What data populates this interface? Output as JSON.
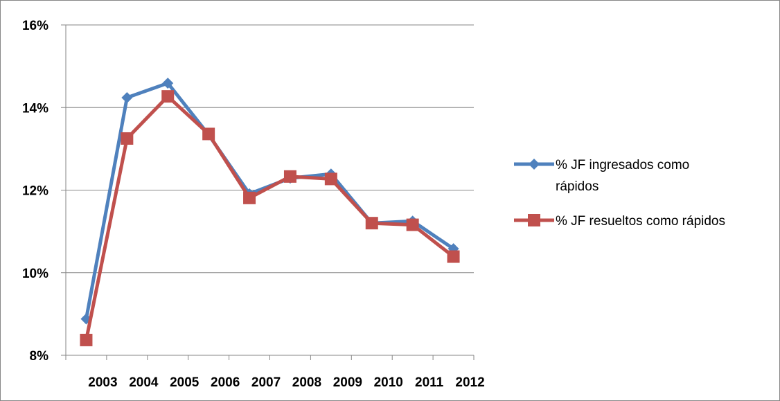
{
  "chart_data": {
    "type": "line",
    "title": "",
    "xlabel": "",
    "ylabel": "",
    "categories": [
      "2003",
      "2004",
      "2005",
      "2006",
      "2007",
      "2008",
      "2009",
      "2010",
      "2011",
      "2012"
    ],
    "ylim": [
      0.08,
      0.16
    ],
    "yticks": [
      {
        "value": 0.08,
        "label": "8%"
      },
      {
        "value": 0.1,
        "label": "10%"
      },
      {
        "value": 0.12,
        "label": "12%"
      },
      {
        "value": 0.14,
        "label": "14%"
      },
      {
        "value": 0.16,
        "label": "16%"
      }
    ],
    "grid": true,
    "legend_position": "right",
    "series": [
      {
        "name": "% JF ingresados como rápidos",
        "legend_lines": [
          "% JF ingresados como",
          "rápidos"
        ],
        "color": "#4F81BD",
        "marker": "diamond",
        "values": [
          0.0888,
          0.1424,
          0.1459,
          0.1334,
          0.1191,
          0.1229,
          0.1239,
          0.112,
          0.1125,
          0.1058
        ]
      },
      {
        "name": "% JF resueltos como rápidos",
        "legend_lines": [
          "% JF resueltos como rápidos"
        ],
        "color": "#C0504D",
        "marker": "square",
        "values": [
          0.0837,
          0.1325,
          0.1427,
          0.1336,
          0.1181,
          0.1233,
          0.1227,
          0.112,
          0.1116,
          0.1039
        ]
      }
    ]
  }
}
